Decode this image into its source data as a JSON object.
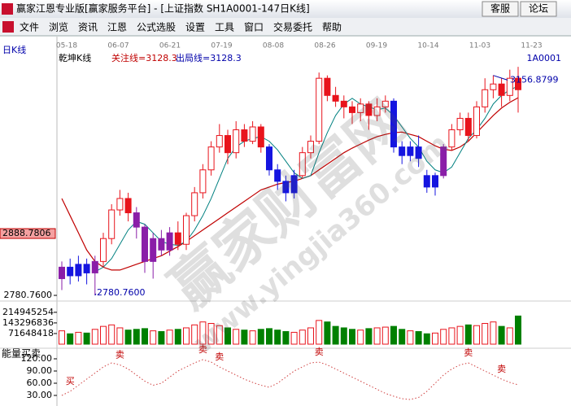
{
  "window": {
    "title": "赢家江恩专业版[赢家服务平台] - [上证指数  SH1A0001-147日K线]",
    "buttons": [
      "客服",
      "论坛"
    ]
  },
  "menu": [
    "文件",
    "浏览",
    "资讯",
    "江恩",
    "公式选股",
    "设置",
    "工具",
    "窗口",
    "交易委托",
    "帮助"
  ],
  "chart_data": {
    "type": "candlestick",
    "period_label": "日K线",
    "indicator_label": "乾坤K线",
    "watch_line": "关注线=3128.3",
    "exit_line": "出局线=3128.3",
    "code": "1A0001",
    "watermark": "赢家财富网",
    "watermark_url": "www.yingjia360.com",
    "dates": [
      "05-18",
      "06-07",
      "06-21",
      "07-19",
      "08-08",
      "08-26",
      "09-19",
      "10-14",
      "11-03",
      "11-23"
    ],
    "ylim": [
      2773.7,
      3208.6
    ],
    "yticks": [
      {
        "value": 2888.7806,
        "label": "2888.7806"
      },
      {
        "value": 2780.76,
        "label": "2780.7600"
      }
    ],
    "high_label": 3156.8799,
    "low_label": {
      "value": 2780.76,
      "label": "2780.7600"
    },
    "candles": [
      {
        "o": 2810,
        "c": 2830,
        "h": 2840,
        "l": 2790,
        "color": "#8a1ea8"
      },
      {
        "o": 2830,
        "c": 2815,
        "h": 2845,
        "l": 2800,
        "color": "#1515e0"
      },
      {
        "o": 2815,
        "c": 2835,
        "h": 2850,
        "l": 2805,
        "color": "#1515e0"
      },
      {
        "o": 2835,
        "c": 2820,
        "h": 2845,
        "l": 2800,
        "color": "#1515e0"
      },
      {
        "o": 2820,
        "c": 2840,
        "h": 2850,
        "l": 2781,
        "color": "#8a1ea8"
      },
      {
        "o": 2840,
        "c": 2880,
        "h": 2890,
        "l": 2830,
        "color": "#e8141c"
      },
      {
        "o": 2880,
        "c": 2930,
        "h": 2940,
        "l": 2870,
        "color": "#e8141c"
      },
      {
        "o": 2930,
        "c": 2950,
        "h": 2965,
        "l": 2920,
        "color": "#e8141c"
      },
      {
        "o": 2950,
        "c": 2925,
        "h": 2960,
        "l": 2910,
        "color": "#e8141c"
      },
      {
        "o": 2925,
        "c": 2900,
        "h": 2935,
        "l": 2880,
        "color": "#8a1ea8"
      },
      {
        "o": 2900,
        "c": 2840,
        "h": 2905,
        "l": 2820,
        "color": "#8a1ea8"
      },
      {
        "o": 2840,
        "c": 2880,
        "h": 2890,
        "l": 2810,
        "color": "#8a1ea8"
      },
      {
        "o": 2880,
        "c": 2860,
        "h": 2895,
        "l": 2850,
        "color": "#8a1ea8"
      },
      {
        "o": 2860,
        "c": 2890,
        "h": 2900,
        "l": 2850,
        "color": "#8a1ea8"
      },
      {
        "o": 2890,
        "c": 2870,
        "h": 2910,
        "l": 2860,
        "color": "#e8141c"
      },
      {
        "o": 2870,
        "c": 2920,
        "h": 2925,
        "l": 2860,
        "color": "#e8141c"
      },
      {
        "o": 2920,
        "c": 2960,
        "h": 2970,
        "l": 2910,
        "color": "#e8141c"
      },
      {
        "o": 2960,
        "c": 3000,
        "h": 3010,
        "l": 2950,
        "color": "#e8141c"
      },
      {
        "o": 3000,
        "c": 3040,
        "h": 3050,
        "l": 2990,
        "color": "#e8141c"
      },
      {
        "o": 3040,
        "c": 3060,
        "h": 3080,
        "l": 3030,
        "color": "#e8141c"
      },
      {
        "o": 3060,
        "c": 3030,
        "h": 3070,
        "l": 3010,
        "color": "#e8141c"
      },
      {
        "o": 3030,
        "c": 3070,
        "h": 3085,
        "l": 3020,
        "color": "#e8141c"
      },
      {
        "o": 3070,
        "c": 3050,
        "h": 3080,
        "l": 3040,
        "color": "#e8141c"
      },
      {
        "o": 3050,
        "c": 3075,
        "h": 3085,
        "l": 3045,
        "color": "#e8141c"
      },
      {
        "o": 3075,
        "c": 3040,
        "h": 3080,
        "l": 3030,
        "color": "#e8141c"
      },
      {
        "o": 3040,
        "c": 3000,
        "h": 3045,
        "l": 2990,
        "color": "#1515e0"
      },
      {
        "o": 3000,
        "c": 2980,
        "h": 3010,
        "l": 2965,
        "color": "#1515e0"
      },
      {
        "o": 2980,
        "c": 2960,
        "h": 2990,
        "l": 2945,
        "color": "#1515e0"
      },
      {
        "o": 2960,
        "c": 2990,
        "h": 3000,
        "l": 2950,
        "color": "#1515e0"
      },
      {
        "o": 2990,
        "c": 3030,
        "h": 3040,
        "l": 2985,
        "color": "#e8141c"
      },
      {
        "o": 3030,
        "c": 3050,
        "h": 3060,
        "l": 3020,
        "color": "#e8141c"
      },
      {
        "o": 3050,
        "c": 3160,
        "h": 3170,
        "l": 3045,
        "color": "#e8141c"
      },
      {
        "o": 3160,
        "c": 3130,
        "h": 3165,
        "l": 3120,
        "color": "#e8141c"
      },
      {
        "o": 3130,
        "c": 3120,
        "h": 3145,
        "l": 3110,
        "color": "#e8141c"
      },
      {
        "o": 3120,
        "c": 3110,
        "h": 3130,
        "l": 3090,
        "color": "#e8141c"
      },
      {
        "o": 3110,
        "c": 3100,
        "h": 3120,
        "l": 3080,
        "color": "#e8141c"
      },
      {
        "o": 3100,
        "c": 3115,
        "h": 3125,
        "l": 3085,
        "color": "#e8141c"
      },
      {
        "o": 3115,
        "c": 3095,
        "h": 3120,
        "l": 3070,
        "color": "#e8141c"
      },
      {
        "o": 3095,
        "c": 3110,
        "h": 3125,
        "l": 3085,
        "color": "#e8141c"
      },
      {
        "o": 3110,
        "c": 3120,
        "h": 3130,
        "l": 3100,
        "color": "#e8141c"
      },
      {
        "o": 3120,
        "c": 3040,
        "h": 3125,
        "l": 3030,
        "color": "#1515e0"
      },
      {
        "o": 3040,
        "c": 3025,
        "h": 3050,
        "l": 3010,
        "color": "#1515e0"
      },
      {
        "o": 3025,
        "c": 3040,
        "h": 3050,
        "l": 3015,
        "color": "#1515e0"
      },
      {
        "o": 3040,
        "c": 3020,
        "h": 3060,
        "l": 3005,
        "color": "#1515e0"
      },
      {
        "o": 2990,
        "c": 2970,
        "h": 3000,
        "l": 2960,
        "color": "#1515e0"
      },
      {
        "o": 2970,
        "c": 2990,
        "h": 2995,
        "l": 2955,
        "color": "#1515e0"
      },
      {
        "o": 2990,
        "c": 3040,
        "h": 3045,
        "l": 2985,
        "color": "#8a1ea8"
      },
      {
        "o": 3040,
        "c": 3070,
        "h": 3080,
        "l": 3035,
        "color": "#e8141c"
      },
      {
        "o": 3070,
        "c": 3090,
        "h": 3100,
        "l": 3060,
        "color": "#e8141c"
      },
      {
        "o": 3090,
        "c": 3060,
        "h": 3100,
        "l": 3050,
        "color": "#e8141c"
      },
      {
        "o": 3060,
        "c": 3110,
        "h": 3120,
        "l": 3055,
        "color": "#e8141c"
      },
      {
        "o": 3110,
        "c": 3140,
        "h": 3160,
        "l": 3100,
        "color": "#e8141c"
      },
      {
        "o": 3140,
        "c": 3150,
        "h": 3165,
        "l": 3125,
        "color": "#e8141c"
      },
      {
        "o": 3150,
        "c": 3130,
        "h": 3160,
        "l": 3110,
        "color": "#e8141c"
      },
      {
        "o": 3130,
        "c": 3160,
        "h": 3175,
        "l": 3120,
        "color": "#e8141c"
      },
      {
        "o": 3160,
        "c": 3140,
        "h": 3180,
        "l": 3100,
        "color": "#e8141c"
      }
    ],
    "lines": [
      {
        "color": "#c00000",
        "values": [
          2950,
          2920,
          2890,
          2860,
          2840,
          2830,
          2825,
          2825,
          2830,
          2835,
          2840,
          2845,
          2850,
          2858,
          2866,
          2875,
          2885,
          2895,
          2905,
          2915,
          2925,
          2935,
          2945,
          2955,
          2965,
          2970,
          2975,
          2978,
          2980,
          2985,
          2990,
          3000,
          3010,
          3020,
          3030,
          3038,
          3045,
          3052,
          3058,
          3062,
          3065,
          3066,
          3062,
          3058,
          3050,
          3042,
          3036,
          3034,
          3040,
          3050,
          3065,
          3080,
          3095,
          3108,
          3118,
          3126
        ]
      },
      {
        "color": "#008080",
        "values": [
          null,
          null,
          null,
          null,
          2822,
          2830,
          2845,
          2870,
          2895,
          2910,
          2905,
          2890,
          2875,
          2870,
          2868,
          2875,
          2895,
          2920,
          2950,
          2985,
          3020,
          3040,
          3050,
          3055,
          3058,
          3050,
          3035,
          3015,
          2995,
          2985,
          2990,
          3030,
          3065,
          3095,
          3115,
          3125,
          3115,
          3110,
          3105,
          3108,
          3095,
          3075,
          3055,
          3040,
          3015,
          3000,
          2995,
          3005,
          3030,
          3055,
          3070,
          3090,
          3115,
          3130,
          3140,
          3146
        ]
      }
    ],
    "volume": {
      "ylim": [
        0,
        280000000
      ],
      "yticks": [
        214945254,
        143296836,
        71648418
      ],
      "values": [
        90000000,
        70000000,
        80000000,
        75000000,
        100000000,
        120000000,
        130000000,
        110000000,
        95000000,
        100000000,
        105000000,
        90000000,
        85000000,
        95000000,
        100000000,
        110000000,
        130000000,
        150000000,
        140000000,
        125000000,
        110000000,
        100000000,
        95000000,
        90000000,
        100000000,
        105000000,
        95000000,
        85000000,
        80000000,
        95000000,
        110000000,
        160000000,
        150000000,
        120000000,
        110000000,
        100000000,
        95000000,
        105000000,
        110000000,
        115000000,
        120000000,
        100000000,
        90000000,
        85000000,
        70000000,
        75000000,
        100000000,
        110000000,
        120000000,
        130000000,
        125000000,
        140000000,
        150000000,
        120000000,
        110000000,
        190000000
      ]
    },
    "energy": {
      "title": "能量买卖",
      "ylim": [
        8,
        138
      ],
      "yticks": [
        {
          "value": 120,
          "label": "120.00"
        },
        {
          "value": 90,
          "label": "90.00"
        },
        {
          "value": 60,
          "label": "60.00"
        },
        {
          "value": 30,
          "label": "30.00"
        }
      ],
      "values": [
        30,
        40,
        55,
        70,
        85,
        100,
        110,
        105,
        95,
        80,
        65,
        55,
        60,
        75,
        90,
        100,
        110,
        118,
        112,
        100,
        90,
        80,
        70,
        62,
        55,
        50,
        60,
        75,
        90,
        100,
        110,
        112,
        105,
        95,
        85,
        75,
        65,
        55,
        45,
        35,
        28,
        22,
        20,
        25,
        40,
        60,
        80,
        95,
        105,
        110,
        100,
        90,
        80,
        70,
        62,
        56
      ],
      "signals": [
        null,
        "买",
        null,
        null,
        null,
        null,
        null,
        "卖",
        null,
        null,
        null,
        null,
        null,
        null,
        null,
        null,
        null,
        "卖",
        null,
        "卖",
        null,
        null,
        null,
        null,
        null,
        null,
        null,
        null,
        null,
        null,
        null,
        "卖",
        null,
        null,
        null,
        null,
        null,
        null,
        null,
        null,
        null,
        null,
        null,
        null,
        null,
        null,
        null,
        null,
        null,
        "卖",
        null,
        null,
        null,
        "卖",
        null,
        null
      ]
    }
  }
}
